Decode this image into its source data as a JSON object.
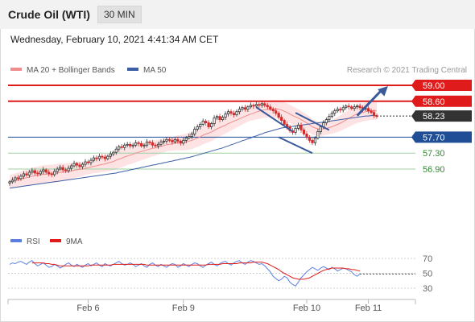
{
  "header": {
    "title": "Crude Oil (WTI)",
    "timeframe": "30 MIN",
    "datetime": "Wednesday, February 10, 2021 4:41:34 AM CET"
  },
  "colors": {
    "bb_fill": "#fde3e3",
    "ma20": "#f08c8c",
    "ma50": "#3b5fa6",
    "resistance": "#e01b1b",
    "current": "#333333",
    "support_blue": "#1f4e96",
    "support_green": "#2e8b2e",
    "rsi": "#5b7fe0",
    "rsi_ma": "#e01b1b",
    "bull": "#333333",
    "bear": "#d42a2a"
  },
  "chart_data": [
    {
      "type": "candlestick",
      "legend": [
        {
          "label": "MA 20 + Bollinger Bands",
          "color": "#f08c8c"
        },
        {
          "label": "MA 50",
          "color": "#3b5fa6"
        }
      ],
      "source": "Research © 2021 Trading Central",
      "ylim": [
        56.0,
        59.2
      ],
      "levels": [
        {
          "value": 59.0,
          "label": "59.00",
          "kind": "resistance"
        },
        {
          "value": 58.6,
          "label": "58.60",
          "kind": "resistance"
        },
        {
          "value": 58.23,
          "label": "58.23",
          "kind": "current"
        },
        {
          "value": 57.7,
          "label": "57.70",
          "kind": "pivot"
        },
        {
          "value": 57.3,
          "label": "57.30",
          "kind": "support"
        },
        {
          "value": 56.9,
          "label": "56.90",
          "kind": "support"
        }
      ],
      "close": [
        56.58,
        56.62,
        56.68,
        56.66,
        56.72,
        56.78,
        56.75,
        56.82,
        56.86,
        56.8,
        56.78,
        56.84,
        56.88,
        56.82,
        56.78,
        56.76,
        56.84,
        56.9,
        56.94,
        56.88,
        56.86,
        56.92,
        56.98,
        57.04,
        57.0,
        56.96,
        57.02,
        57.08,
        57.06,
        57.12,
        57.18,
        57.16,
        57.22,
        57.2,
        57.16,
        57.22,
        57.28,
        57.32,
        57.4,
        57.46,
        57.44,
        57.5,
        57.52,
        57.48,
        57.5,
        57.56,
        57.54,
        57.48,
        57.5,
        57.58,
        57.56,
        57.5,
        57.48,
        57.52,
        57.58,
        57.6,
        57.64,
        57.62,
        57.58,
        57.64,
        57.6,
        57.55,
        57.62,
        57.68,
        57.72,
        57.78,
        57.9,
        57.96,
        58.02,
        58.1,
        58.06,
        57.96,
        58.04,
        58.18,
        58.22,
        58.14,
        58.2,
        58.28,
        58.34,
        58.3,
        58.26,
        58.34,
        58.4,
        58.44,
        58.4,
        58.46,
        58.5,
        58.48,
        58.52,
        58.5,
        58.54,
        58.5,
        58.46,
        58.4,
        58.36,
        58.3,
        58.2,
        58.12,
        58.02,
        57.96,
        57.86,
        57.82,
        57.92,
        58.0,
        57.88,
        57.78,
        57.7,
        57.62,
        57.56,
        57.68,
        57.84,
        57.96,
        58.06,
        58.14,
        58.22,
        58.3,
        58.36,
        58.4,
        58.38,
        58.44,
        58.48,
        58.46,
        58.42,
        58.46,
        58.48,
        58.44,
        58.4,
        58.42,
        58.36,
        58.32,
        58.24,
        58.23
      ],
      "ma20": [
        56.58,
        56.6,
        56.62,
        56.63,
        56.65,
        56.67,
        56.68,
        56.7,
        56.72,
        56.73,
        56.74,
        56.75,
        56.77,
        56.77,
        56.78,
        56.78,
        56.79,
        56.8,
        56.82,
        56.82,
        56.83,
        56.84,
        56.85,
        56.87,
        56.88,
        56.89,
        56.9,
        56.92,
        56.93,
        56.95,
        56.97,
        56.98,
        57.0,
        57.02,
        57.03,
        57.05,
        57.07,
        57.09,
        57.12,
        57.15,
        57.17,
        57.2,
        57.23,
        57.25,
        57.27,
        57.3,
        57.32,
        57.34,
        57.36,
        57.38,
        57.4,
        57.42,
        57.43,
        57.45,
        57.47,
        57.49,
        57.51,
        57.52,
        57.53,
        57.55,
        57.56,
        57.56,
        57.57,
        57.58,
        57.6,
        57.62,
        57.65,
        57.68,
        57.71,
        57.75,
        57.78,
        57.8,
        57.83,
        57.87,
        57.91,
        57.94,
        57.97,
        58.0,
        58.04,
        58.07,
        58.1,
        58.13,
        58.16,
        58.19,
        58.22,
        58.25,
        58.28,
        58.3,
        58.33,
        58.35,
        58.37,
        58.39,
        58.4,
        58.41,
        58.41,
        58.41,
        58.4,
        58.38,
        58.35,
        58.32,
        58.28,
        58.24,
        58.21,
        58.18,
        58.14,
        58.1,
        58.06,
        58.01,
        57.96,
        57.93,
        57.91,
        57.9,
        57.91,
        57.92,
        57.94,
        57.96,
        57.99,
        58.02,
        58.05,
        58.09,
        58.13,
        58.17,
        58.21,
        58.25,
        58.28,
        58.3,
        58.32,
        58.34,
        58.35,
        58.36,
        58.36,
        58.36
      ],
      "ma50": [
        56.42,
        56.43,
        56.44,
        56.45,
        56.46,
        56.47,
        56.48,
        56.49,
        56.5,
        56.51,
        56.52,
        56.53,
        56.54,
        56.55,
        56.56,
        56.57,
        56.58,
        56.59,
        56.6,
        56.61,
        56.62,
        56.63,
        56.64,
        56.65,
        56.66,
        56.67,
        56.68,
        56.69,
        56.7,
        56.71,
        56.72,
        56.73,
        56.74,
        56.75,
        56.76,
        56.77,
        56.78,
        56.79,
        56.8,
        56.82,
        56.83,
        56.85,
        56.86,
        56.88,
        56.89,
        56.91,
        56.92,
        56.94,
        56.95,
        56.97,
        56.98,
        57.0,
        57.01,
        57.03,
        57.04,
        57.06,
        57.07,
        57.09,
        57.1,
        57.12,
        57.13,
        57.15,
        57.16,
        57.18,
        57.19,
        57.21,
        57.23,
        57.25,
        57.27,
        57.29,
        57.31,
        57.33,
        57.35,
        57.37,
        57.39,
        57.41,
        57.43,
        57.46,
        57.48,
        57.51,
        57.53,
        57.56,
        57.58,
        57.61,
        57.63,
        57.66,
        57.68,
        57.71,
        57.73,
        57.76,
        57.78,
        57.81,
        57.83,
        57.85,
        57.87,
        57.89,
        57.91,
        57.93,
        57.94,
        57.95,
        57.96,
        57.97,
        57.98,
        57.99,
        58.0,
        58.01,
        58.02,
        58.03,
        58.04,
        58.05,
        58.06,
        58.07,
        58.08,
        58.09,
        58.1,
        58.11,
        58.12,
        58.13,
        58.14,
        58.15,
        58.16,
        58.17,
        58.18,
        58.19,
        58.2,
        58.21,
        58.22,
        58.23,
        58.23,
        58.24,
        58.24,
        58.24
      ],
      "trendlines": [
        {
          "from": [
            88,
            58.45
          ],
          "to": [
            101,
            57.84
          ]
        },
        {
          "from": [
            102,
            58.31
          ],
          "to": [
            114,
            57.88
          ]
        },
        {
          "from": [
            96,
            57.7
          ],
          "to": [
            108,
            57.3
          ]
        }
      ],
      "projection": {
        "from": [
          124,
          58.24
        ],
        "to": [
          135,
          58.98
        ]
      },
      "xticks": [
        {
          "index": 28,
          "label": "Feb 6"
        },
        {
          "index": 62,
          "label": "Feb 9"
        },
        {
          "index": 106,
          "label": "Feb 10"
        },
        {
          "index": 128,
          "label": "Feb 11"
        }
      ]
    },
    {
      "type": "line",
      "legend": [
        {
          "label": "RSI",
          "color": "#5b7fe0"
        },
        {
          "label": "9MA",
          "color": "#e01b1b"
        }
      ],
      "ylim": [
        20,
        80
      ],
      "yticks": [
        70,
        50,
        30
      ],
      "series": [
        {
          "name": "RSI",
          "values": [
            62,
            64,
            63,
            65,
            66,
            64,
            62,
            65,
            67,
            63,
            60,
            62,
            64,
            61,
            58,
            59,
            62,
            60,
            57,
            59,
            62,
            64,
            61,
            59,
            62,
            60,
            58,
            61,
            63,
            60,
            62,
            64,
            61,
            59,
            63,
            61,
            60,
            62,
            64,
            66,
            63,
            61,
            62,
            64,
            62,
            59,
            61,
            63,
            60,
            58,
            62,
            64,
            61,
            59,
            62,
            60,
            58,
            61,
            63,
            62,
            58,
            60,
            63,
            61,
            59,
            62,
            64,
            63,
            60,
            58,
            61,
            63,
            65,
            62,
            60,
            63,
            65,
            66,
            63,
            61,
            64,
            66,
            67,
            64,
            62,
            65,
            67,
            66,
            64,
            62,
            63,
            60,
            56,
            52,
            46,
            43,
            40,
            42,
            46,
            44,
            38,
            35,
            33,
            38,
            44,
            48,
            52,
            55,
            58,
            56,
            54,
            57,
            59,
            57,
            55,
            58,
            56,
            53,
            55,
            57,
            56,
            54,
            52,
            48,
            46,
            49
          ]
        },
        {
          "name": "9MA",
          "values": [
            null,
            null,
            null,
            null,
            null,
            null,
            null,
            null,
            64,
            64,
            64,
            64,
            64,
            63,
            63,
            62,
            62,
            61,
            60,
            60,
            60,
            60,
            60,
            60,
            60,
            60,
            60,
            60,
            60,
            61,
            61,
            61,
            61,
            61,
            61,
            61,
            61,
            62,
            62,
            62,
            62,
            62,
            62,
            62,
            62,
            62,
            62,
            62,
            62,
            61,
            61,
            61,
            61,
            61,
            61,
            61,
            61,
            61,
            61,
            61,
            61,
            61,
            61,
            61,
            61,
            61,
            61,
            61,
            61,
            61,
            61,
            62,
            62,
            62,
            62,
            62,
            63,
            63,
            63,
            63,
            63,
            63,
            64,
            64,
            64,
            64,
            64,
            65,
            65,
            65,
            65,
            64,
            63,
            61,
            59,
            57,
            55,
            52,
            50,
            48,
            46,
            44,
            43,
            42,
            42,
            42,
            43,
            44,
            46,
            48,
            50,
            52,
            54,
            55,
            56,
            57,
            57,
            57,
            57,
            57,
            56,
            56,
            55,
            55,
            54,
            53
          ]
        }
      ],
      "projection_value": 49,
      "xticks": [
        "Feb 6",
        "Feb 9",
        "Feb 10",
        "Feb 11"
      ]
    }
  ]
}
